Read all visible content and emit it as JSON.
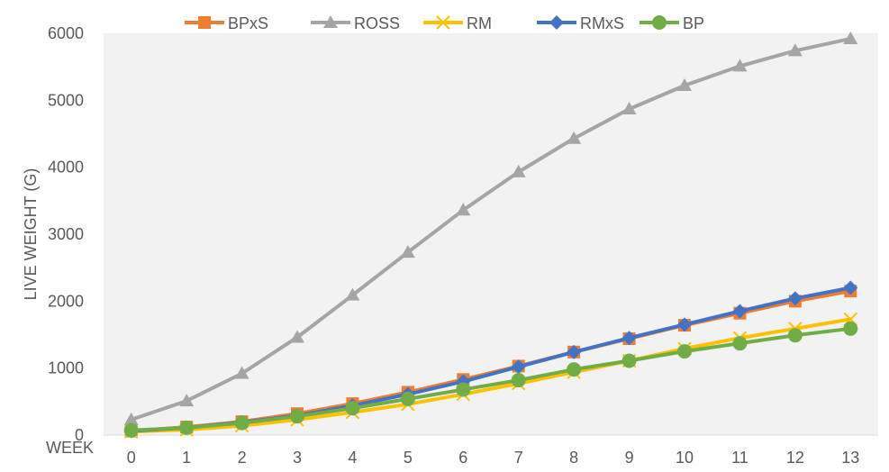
{
  "chart_data": {
    "type": "line",
    "xlabel": "WEEK",
    "ylabel": "LIVE WEIGHT (G)",
    "x": [
      0,
      1,
      2,
      3,
      4,
      5,
      6,
      7,
      8,
      9,
      10,
      11,
      12,
      13
    ],
    "ylim": [
      0,
      6000
    ],
    "yticks": [
      0,
      1000,
      2000,
      3000,
      4000,
      5000,
      6000
    ],
    "grid": false,
    "legend_position": "top",
    "plot_background": "#f2f2f2",
    "series": [
      {
        "name": "BPxS",
        "color": "#ed7d31",
        "marker": "square",
        "values": [
          60,
          120,
          200,
          320,
          470,
          640,
          830,
          1030,
          1240,
          1440,
          1640,
          1820,
          2000,
          2150
        ]
      },
      {
        "name": "ROSS",
        "color": "#a5a5a5",
        "marker": "triangle",
        "values": [
          230,
          510,
          920,
          1460,
          2090,
          2730,
          3360,
          3930,
          4430,
          4870,
          5220,
          5510,
          5740,
          5920
        ]
      },
      {
        "name": "RM",
        "color": "#ffc000",
        "marker": "x",
        "values": [
          50,
          80,
          140,
          230,
          340,
          460,
          610,
          770,
          940,
          1110,
          1290,
          1450,
          1590,
          1730
        ]
      },
      {
        "name": "RMxS",
        "color": "#4472c4",
        "marker": "diamond",
        "values": [
          60,
          110,
          190,
          290,
          440,
          610,
          800,
          1020,
          1240,
          1450,
          1650,
          1850,
          2040,
          2200
        ]
      },
      {
        "name": "BP",
        "color": "#70ad47",
        "marker": "circle",
        "values": [
          70,
          110,
          180,
          280,
          400,
          540,
          680,
          820,
          980,
          1110,
          1250,
          1370,
          1490,
          1590
        ]
      }
    ]
  }
}
